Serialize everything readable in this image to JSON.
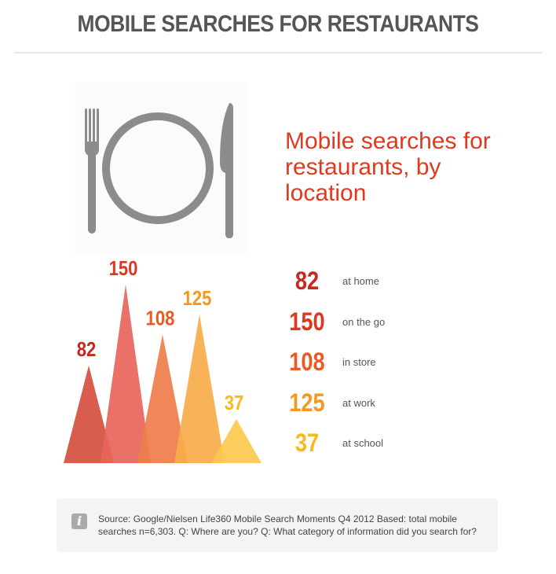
{
  "header": {
    "title": "MOBILE SEARCHES FOR RESTAURANTS"
  },
  "icon": "fork-plate-knife-icon",
  "chart_data": {
    "type": "area",
    "title": "Mobile searches for restaurants, by location",
    "categories": [
      "at home",
      "on the go",
      "in store",
      "at work",
      "at school"
    ],
    "values": [
      82,
      150,
      108,
      125,
      37
    ],
    "colors": [
      "#d44f3f",
      "#e8655a",
      "#ef7d4a",
      "#f7ab4a",
      "#fcc84e"
    ],
    "label_colors": [
      "#c8281e",
      "#d93a26",
      "#ec5a24",
      "#f39a1e",
      "#f8b81f"
    ],
    "grid": false
  },
  "source": {
    "icon": "info-icon",
    "text": "Source: Google/Nielsen Life360 Mobile Search Moments Q4 2012 Based: total mobile searches n=6,303. Q: Where are you? Q: What category of information did you search for?"
  }
}
